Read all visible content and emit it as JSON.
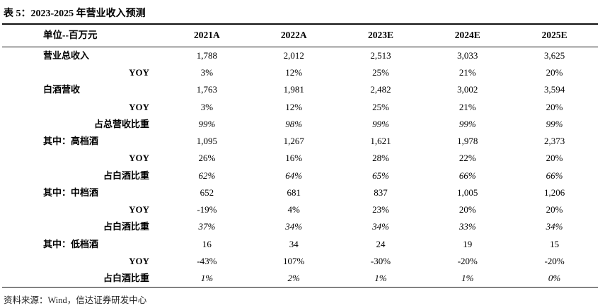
{
  "title": "表 5：2023-2025 年营业收入预测",
  "footer": "资料来源：Wind，信达证券研发中心",
  "table": {
    "header": [
      "单位--百万元",
      "2021A",
      "2022A",
      "2023E",
      "2024E",
      "2025E"
    ],
    "rows": [
      {
        "label": "营业总收入",
        "indent": "main",
        "italic": false,
        "values": [
          "1,788",
          "2,012",
          "2,513",
          "3,033",
          "3,625"
        ]
      },
      {
        "label": "YOY",
        "indent": "sub",
        "italic": false,
        "values": [
          "3%",
          "12%",
          "25%",
          "21%",
          "20%"
        ]
      },
      {
        "label": "白酒营收",
        "indent": "main",
        "italic": false,
        "values": [
          "1,763",
          "1,981",
          "2,482",
          "3,002",
          "3,594"
        ]
      },
      {
        "label": "YOY",
        "indent": "sub",
        "italic": false,
        "values": [
          "3%",
          "12%",
          "25%",
          "21%",
          "20%"
        ]
      },
      {
        "label": "占总营收比重",
        "indent": "sub",
        "italic": true,
        "values": [
          "99%",
          "98%",
          "99%",
          "99%",
          "99%"
        ]
      },
      {
        "label": "其中：高档酒",
        "indent": "main",
        "italic": false,
        "values": [
          "1,095",
          "1,267",
          "1,621",
          "1,978",
          "2,373"
        ]
      },
      {
        "label": "YOY",
        "indent": "sub",
        "italic": false,
        "values": [
          "26%",
          "16%",
          "28%",
          "22%",
          "20%"
        ]
      },
      {
        "label": "占白酒比重",
        "indent": "sub",
        "italic": true,
        "values": [
          "62%",
          "64%",
          "65%",
          "66%",
          "66%"
        ]
      },
      {
        "label": "其中：中档酒",
        "indent": "main",
        "italic": false,
        "values": [
          "652",
          "681",
          "837",
          "1,005",
          "1,206"
        ]
      },
      {
        "label": "YOY",
        "indent": "sub",
        "italic": false,
        "values": [
          "-19%",
          "4%",
          "23%",
          "20%",
          "20%"
        ]
      },
      {
        "label": "占白酒比重",
        "indent": "sub",
        "italic": true,
        "values": [
          "37%",
          "34%",
          "34%",
          "33%",
          "34%"
        ]
      },
      {
        "label": "其中：低档酒",
        "indent": "main",
        "italic": false,
        "values": [
          "16",
          "34",
          "24",
          "19",
          "15"
        ]
      },
      {
        "label": "YOY",
        "indent": "sub",
        "italic": false,
        "values": [
          "-43%",
          "107%",
          "-30%",
          "-20%",
          "-20%"
        ]
      },
      {
        "label": "占白酒比重",
        "indent": "sub",
        "italic": true,
        "values": [
          "1%",
          "2%",
          "1%",
          "1%",
          "0%"
        ]
      }
    ]
  }
}
